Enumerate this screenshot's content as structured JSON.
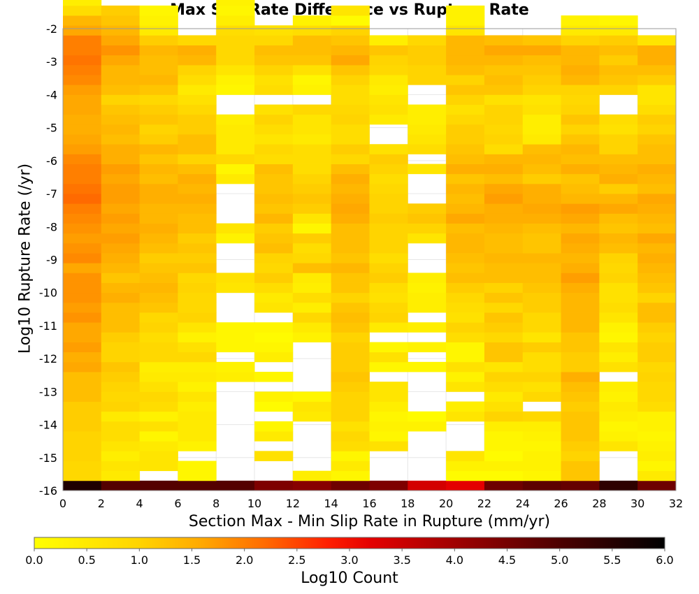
{
  "chart_data": {
    "type": "heatmap",
    "title": "Max Slip Rate Difference vs Rupture Rate",
    "xlabel": "Section Max - Min Slip Rate in Rupture (mm/yr)",
    "ylabel": "Log10 Rupture Rate (/yr)",
    "colorbar_label": "Log10 Count",
    "xlim": [
      0,
      32
    ],
    "ylim": [
      -16,
      -2
    ],
    "x_ticks": [
      "0",
      "2",
      "4",
      "6",
      "8",
      "10",
      "12",
      "14",
      "16",
      "18",
      "20",
      "22",
      "24",
      "26",
      "28",
      "30",
      "32"
    ],
    "y_ticks": [
      "-2",
      "-3",
      "-4",
      "-5",
      "-6",
      "-7",
      "-8",
      "-9",
      "-10",
      "-11",
      "-12",
      "-13",
      "-14",
      "-15",
      "-16"
    ],
    "colorbar_ticks": [
      "0.0",
      "0.5",
      "1.0",
      "1.5",
      "2.0",
      "2.5",
      "3.0",
      "3.5",
      "4.0",
      "4.5",
      "5.0",
      "5.5",
      "6.0"
    ],
    "colorbar_range": [
      0,
      6
    ],
    "colorscale": "hot (yellow → orange → red → black)",
    "x_bin_width": 2,
    "y_bin_height": 0.3,
    "y_bin_start": -16,
    "log10_counts": [
      [
        5.6,
        4.9,
        4.9,
        4.9,
        4.9,
        4.4,
        4.3,
        4.6,
        4.4,
        3.4,
        3.2,
        4.6,
        4.8,
        4.7,
        5.4,
        4.6
      ],
      [
        0.9,
        0.5,
        null,
        0.2,
        null,
        null,
        0.4,
        0.2,
        null,
        null,
        0.1,
        0.1,
        0.2,
        1.2,
        null,
        0.5
      ],
      [
        0.9,
        0.6,
        0.6,
        0.2,
        null,
        null,
        null,
        0.5,
        null,
        null,
        0.3,
        0.3,
        0.3,
        1.2,
        null,
        0.2
      ],
      [
        1.0,
        0.4,
        0.6,
        null,
        null,
        0.7,
        null,
        0.2,
        null,
        null,
        0.6,
        0.1,
        0.3,
        1.0,
        null,
        0.4
      ],
      [
        1.0,
        0.6,
        0.5,
        0.3,
        null,
        null,
        null,
        0.8,
        0.7,
        null,
        null,
        0.2,
        0.2,
        1.1,
        0.6,
        0.3
      ],
      [
        1.0,
        0.8,
        0.2,
        0.5,
        null,
        0.5,
        null,
        0.9,
        0.2,
        null,
        null,
        0.2,
        0.3,
        1.2,
        0.3,
        0.2
      ],
      [
        1.1,
        0.8,
        0.7,
        0.5,
        null,
        0.2,
        null,
        0.7,
        0.3,
        0.3,
        null,
        0.4,
        0.4,
        1.2,
        0.2,
        0.3
      ],
      [
        1.1,
        0.5,
        0.3,
        0.5,
        null,
        null,
        0.5,
        1.0,
        0.2,
        0.1,
        0.6,
        1.0,
        0.9,
        1.2,
        0.4,
        0.3
      ],
      [
        1.1,
        1.0,
        0.8,
        0.4,
        null,
        0.1,
        0.6,
        1.0,
        0.4,
        null,
        0.4,
        0.7,
        null,
        1.1,
        0.5,
        0.8
      ],
      [
        1.3,
        0.9,
        0.9,
        0.6,
        null,
        0.3,
        0.2,
        1.0,
        0.6,
        null,
        null,
        0.5,
        0.9,
        1.2,
        0.3,
        0.9
      ],
      [
        1.3,
        1.0,
        0.7,
        0.3,
        null,
        null,
        null,
        1.1,
        0.6,
        null,
        0.6,
        0.8,
        0.7,
        1.3,
        0.4,
        0.9
      ],
      [
        1.3,
        1.1,
        0.5,
        0.5,
        0.4,
        0.2,
        null,
        1.2,
        null,
        null,
        0.3,
        1.0,
        1.0,
        1.5,
        null,
        1.0
      ],
      [
        1.6,
        1.2,
        0.4,
        0.4,
        0.3,
        null,
        null,
        1.1,
        0.2,
        0.2,
        0.7,
        0.6,
        0.8,
        1.1,
        0.7,
        0.9
      ],
      [
        1.5,
        1.0,
        0.9,
        0.9,
        null,
        0.4,
        null,
        1.1,
        0.7,
        null,
        0.2,
        1.2,
        0.8,
        1.1,
        0.4,
        1.1
      ],
      [
        1.7,
        1.0,
        0.9,
        0.7,
        0.2,
        0.2,
        null,
        1.1,
        0.2,
        0.3,
        0.2,
        1.2,
        1.1,
        1.2,
        0.6,
        1.1
      ],
      [
        1.6,
        1.1,
        0.8,
        0.3,
        0.2,
        0.1,
        0.3,
        1.0,
        null,
        null,
        0.8,
        0.9,
        0.6,
        1.2,
        0.2,
        1.0
      ],
      [
        1.6,
        1.3,
        1.0,
        0.6,
        0.2,
        0.2,
        0.5,
        1.2,
        0.5,
        0.4,
        1.0,
        1.1,
        0.9,
        1.4,
        0.3,
        1.1
      ],
      [
        1.8,
        1.3,
        0.9,
        1.0,
        null,
        null,
        0.9,
        1.3,
        1.0,
        null,
        0.7,
        1.2,
        0.9,
        1.4,
        0.6,
        1.3
      ],
      [
        1.7,
        1.3,
        1.2,
        0.9,
        null,
        0.6,
        0.4,
        1.2,
        0.9,
        0.4,
        0.8,
        0.9,
        1.1,
        1.4,
        0.8,
        1.3
      ],
      [
        1.8,
        1.5,
        1.3,
        0.9,
        null,
        0.5,
        0.8,
        1.0,
        0.7,
        0.4,
        0.9,
        1.2,
        1.1,
        1.4,
        0.7,
        1.0
      ],
      [
        1.8,
        1.4,
        1.4,
        1.0,
        0.6,
        0.8,
        0.4,
        1.2,
        0.8,
        0.3,
        1.1,
        1.0,
        1.2,
        1.5,
        0.7,
        1.2
      ],
      [
        1.8,
        1.2,
        1.3,
        0.9,
        0.7,
        1.1,
        0.5,
        1.2,
        1.1,
        0.4,
        1.3,
        1.3,
        1.3,
        1.7,
        1.0,
        1.3
      ],
      [
        1.6,
        1.4,
        1.2,
        1.2,
        null,
        0.9,
        1.3,
        1.4,
        1.0,
        null,
        1.2,
        1.3,
        1.3,
        1.5,
        0.9,
        1.4
      ],
      [
        1.9,
        1.5,
        1.1,
        1.1,
        null,
        1.0,
        0.9,
        1.2,
        0.8,
        null,
        1.3,
        1.4,
        1.4,
        1.4,
        1.0,
        1.5
      ],
      [
        1.8,
        1.6,
        1.3,
        1.2,
        null,
        1.3,
        0.8,
        1.3,
        1.0,
        null,
        1.4,
        1.3,
        1.2,
        1.5,
        1.3,
        1.4
      ],
      [
        1.7,
        1.7,
        1.4,
        1.1,
        0.3,
        1.2,
        1.1,
        1.3,
        1.0,
        0.6,
        1.4,
        1.3,
        1.2,
        1.6,
        1.4,
        1.6
      ],
      [
        1.8,
        1.6,
        1.5,
        1.3,
        0.6,
        1.1,
        0.2,
        1.3,
        1.0,
        1.0,
        1.3,
        1.4,
        1.3,
        1.4,
        1.2,
        1.3
      ],
      [
        1.9,
        1.7,
        1.4,
        1.3,
        null,
        1.4,
        0.6,
        1.5,
        1.1,
        1.2,
        1.6,
        1.5,
        1.5,
        1.6,
        1.3,
        1.4
      ],
      [
        2.0,
        1.6,
        1.4,
        1.4,
        null,
        1.2,
        1.1,
        1.6,
        1.0,
        1.1,
        1.4,
        1.5,
        1.6,
        1.7,
        1.6,
        1.5
      ],
      [
        2.2,
        1.7,
        1.5,
        1.5,
        null,
        1.3,
        1.2,
        1.5,
        1.0,
        null,
        1.3,
        1.7,
        1.5,
        1.4,
        1.4,
        1.6
      ],
      [
        2.1,
        1.7,
        1.5,
        1.4,
        null,
        1.2,
        1.1,
        1.4,
        0.9,
        null,
        1.4,
        1.6,
        1.5,
        1.3,
        1.1,
        1.3
      ],
      [
        2.0,
        1.6,
        1.3,
        1.5,
        0.5,
        1.2,
        1.0,
        1.5,
        0.8,
        null,
        1.2,
        1.3,
        1.1,
        1.2,
        1.5,
        1.4
      ],
      [
        2.0,
        1.7,
        1.4,
        1.3,
        0.2,
        1.3,
        0.8,
        1.3,
        1.0,
        0.6,
        1.5,
        1.5,
        1.3,
        1.5,
        1.4,
        1.5
      ],
      [
        1.9,
        1.5,
        1.2,
        1.0,
        0.9,
        0.8,
        0.8,
        0.9,
        1.1,
        null,
        1.3,
        1.4,
        1.4,
        1.3,
        1.3,
        1.3
      ],
      [
        1.7,
        1.5,
        1.4,
        1.3,
        0.5,
        0.9,
        0.8,
        1.1,
        0.7,
        0.8,
        1.2,
        0.8,
        1.3,
        1.4,
        1.0,
        1.3
      ],
      [
        1.6,
        1.3,
        1.1,
        1.3,
        0.5,
        0.6,
        0.5,
        0.8,
        null,
        0.6,
        1.1,
        1.0,
        0.5,
        1.2,
        1.0,
        1.2
      ],
      [
        1.5,
        1.4,
        1.0,
        1.1,
        0.5,
        0.8,
        0.6,
        0.8,
        null,
        0.5,
        1.1,
        0.9,
        0.4,
        1.0,
        0.7,
        1.0
      ],
      [
        1.5,
        1.3,
        1.2,
        1.1,
        0.4,
        1.0,
        0.6,
        1.0,
        0.5,
        0.4,
        0.9,
        1.0,
        0.4,
        1.2,
        0.8,
        1.1
      ],
      [
        1.6,
        1.2,
        1.1,
        0.9,
        null,
        0.7,
        0.9,
        0.9,
        0.7,
        0.4,
        0.7,
        1.0,
        0.7,
        1.0,
        null,
        0.8
      ],
      [
        1.6,
        1.0,
        0.9,
        0.7,
        null,
        null,
        null,
        0.8,
        0.6,
        null,
        1.0,
        0.7,
        0.6,
        0.9,
        null,
        0.6
      ],
      [
        1.7,
        1.3,
        1.2,
        0.5,
        0.2,
        0.8,
        0.3,
        0.8,
        0.4,
        null,
        1.2,
        1.2,
        1.0,
        1.0,
        1.0,
        0.6
      ],
      [
        1.9,
        1.4,
        1.4,
        0.8,
        0.3,
        0.7,
        0.2,
        1.0,
        0.5,
        1.0,
        1.0,
        1.3,
        1.1,
        1.4,
        1.2,
        1.1
      ],
      [
        2.0,
        1.4,
        1.3,
        1.0,
        0.6,
        1.0,
        0.7,
        1.2,
        0.9,
        1.0,
        1.3,
        1.2,
        1.2,
        1.5,
        1.3,
        1.3
      ],
      [
        2.1,
        1.6,
        1.3,
        1.4,
        0.9,
        1.2,
        1.2,
        1.6,
        1.0,
        1.1,
        1.4,
        1.4,
        1.3,
        1.4,
        1.1,
        1.5
      ],
      [
        2.0,
        1.8,
        1.4,
        1.5,
        0.9,
        1.3,
        1.3,
        1.4,
        1.2,
        1.1,
        1.4,
        1.6,
        1.6,
        1.4,
        1.3,
        1.5
      ],
      [
        2.0,
        1.6,
        1.1,
        0.9,
        0.9,
        0.9,
        1.3,
        1.2,
        0.4,
        0.9,
        1.4,
        1.3,
        1.2,
        1.0,
        1.1,
        0.6
      ],
      [
        1.6,
        1.4,
        0.5,
        null,
        0.8,
        0.7,
        0.8,
        1.0,
        null,
        null,
        0.6,
        null,
        null,
        0.5,
        0.5,
        null
      ],
      [
        1.4,
        1.2,
        0.3,
        null,
        0.4,
        null,
        0.3,
        0.1,
        null,
        null,
        0.3,
        null,
        null,
        0.3,
        0.2,
        null
      ],
      [
        0.8,
        1.1,
        0.2,
        null,
        0.2,
        null,
        null,
        0.6,
        null,
        null,
        0.3,
        null,
        null,
        null,
        null,
        null
      ],
      [
        0.4,
        null,
        null,
        null,
        0.3,
        null,
        null,
        null,
        null,
        null,
        null,
        null,
        null,
        null,
        null,
        null
      ],
      [
        0.3,
        null,
        null,
        null,
        null,
        null,
        null,
        null,
        null,
        null,
        null,
        null,
        null,
        null,
        null,
        null
      ],
      [
        null,
        null,
        null,
        null,
        null,
        null,
        null,
        null,
        null,
        null,
        null,
        null,
        null,
        null,
        null,
        null
      ]
    ]
  }
}
